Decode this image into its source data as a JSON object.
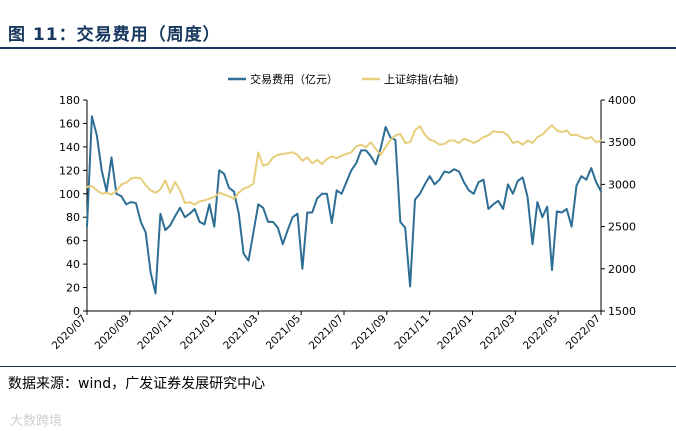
{
  "header": {
    "title": "图 11：交易费用（周度）"
  },
  "footer": {
    "source": "数据来源：wind，广发证券发展研究中心"
  },
  "watermark": {
    "text": "大数跨境"
  },
  "colors": {
    "series1": "#2E6E95",
    "series2": "#E6CE7C",
    "title": "#17375E"
  },
  "chart_data": {
    "type": "line",
    "legend_position": "top-center",
    "grid": false,
    "x_tick_labels": [
      "2020/07",
      "2020/09",
      "2020/11",
      "2021/01",
      "2021/03",
      "2021/05",
      "2021/07",
      "2021/09",
      "2021/11",
      "2022/01",
      "2022/03",
      "2022/05",
      "2022/07"
    ],
    "y_left": {
      "min": 0,
      "max": 180,
      "step": 20
    },
    "y_right": {
      "min": 1500,
      "max": 4000,
      "step": 500
    },
    "series": [
      {
        "name": "交易费用（亿元）",
        "axis": "left",
        "values": [
          72,
          166,
          150,
          120,
          102,
          131,
          100,
          98,
          91,
          93,
          92,
          76,
          67,
          33,
          15,
          83,
          69,
          73,
          81,
          88,
          80,
          83,
          87,
          76,
          74,
          91,
          72,
          120,
          117,
          105,
          102,
          83,
          49,
          43,
          67,
          91,
          88,
          76,
          76,
          71,
          57,
          69,
          80,
          83,
          36,
          84,
          84,
          96,
          100,
          100,
          75,
          103,
          100,
          110,
          120,
          126,
          137,
          137,
          132,
          125,
          139,
          157,
          148,
          146,
          76,
          71,
          21,
          95,
          100,
          108,
          115,
          108,
          112,
          119,
          118,
          121,
          119,
          110,
          103,
          100,
          110,
          112,
          87,
          91,
          94,
          87,
          108,
          100,
          111,
          114,
          97,
          57,
          93,
          80,
          89,
          35,
          85,
          84,
          87,
          72,
          107,
          115,
          112,
          122,
          110,
          102
        ]
      },
      {
        "name": "上证综指(右轴)",
        "axis": "right",
        "values": [
          2970,
          2980,
          2930,
          2890,
          2900,
          2880,
          2920,
          3000,
          3020,
          3070,
          3080,
          3070,
          2990,
          2930,
          2900,
          2940,
          3050,
          2900,
          3030,
          2930,
          2780,
          2790,
          2760,
          2800,
          2810,
          2830,
          2850,
          2900,
          2880,
          2860,
          2830,
          2900,
          2950,
          2970,
          3010,
          3380,
          3220,
          3240,
          3320,
          3350,
          3360,
          3370,
          3380,
          3350,
          3280,
          3320,
          3250,
          3290,
          3240,
          3300,
          3330,
          3310,
          3340,
          3360,
          3380,
          3450,
          3470,
          3440,
          3500,
          3420,
          3350,
          3440,
          3530,
          3580,
          3600,
          3490,
          3500,
          3640,
          3690,
          3590,
          3530,
          3510,
          3470,
          3480,
          3520,
          3520,
          3490,
          3540,
          3520,
          3490,
          3520,
          3560,
          3580,
          3630,
          3620,
          3620,
          3580,
          3490,
          3510,
          3470,
          3520,
          3490,
          3560,
          3590,
          3650,
          3700,
          3640,
          3620,
          3640,
          3580,
          3590,
          3560,
          3540,
          3560,
          3500,
          3520
        ]
      }
    ]
  }
}
